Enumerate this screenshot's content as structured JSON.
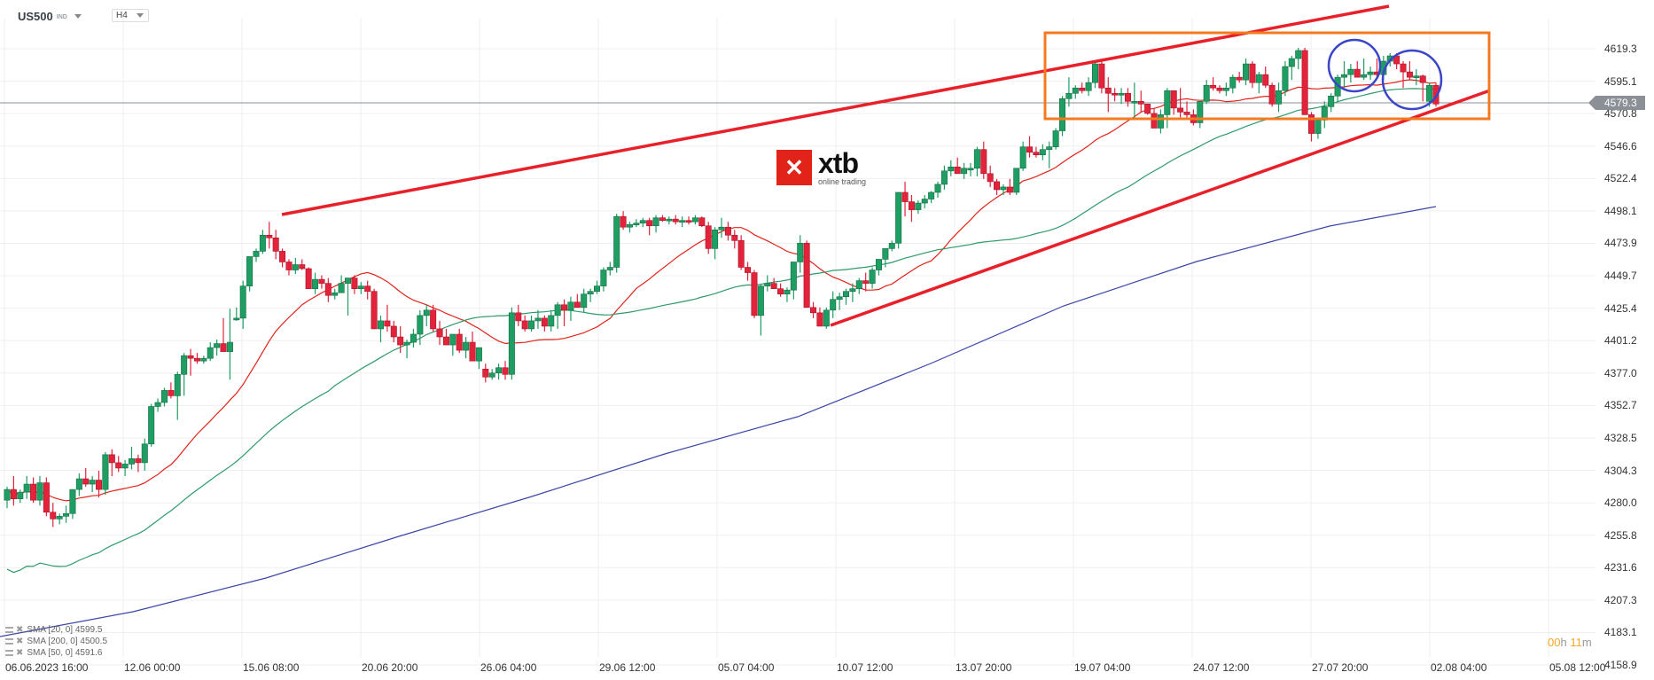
{
  "header": {
    "symbol": "US500",
    "symbol_tag": "IND",
    "timeframe": "H4"
  },
  "logo": {
    "mark": "✕",
    "name": "xtb",
    "tagline": "online trading"
  },
  "indicators": [
    {
      "label": "SMA [20, 0] 4599.5",
      "color": "#e2231a"
    },
    {
      "label": "SMA [200, 0] 4500.5",
      "color": "#3a46a8"
    },
    {
      "label": "SMA [50, 0] 4591.6",
      "color": "#2e9a6a"
    }
  ],
  "timer": {
    "hours": "00",
    "h": "h",
    "minutes": "11",
    "m": "m"
  },
  "current_price": "4579.3",
  "colors": {
    "up": "#1e9e62",
    "down": "#e2233a",
    "channel": "#e8202a",
    "box": "#f47a20",
    "circle": "#3b45c8",
    "sma20": "#e2231a",
    "sma50": "#2e9a6a",
    "sma200": "#3a46a8",
    "grid": "#efefef",
    "price_line": "#8a9096"
  },
  "chart_data": {
    "type": "candlestick",
    "title": "US500 H4",
    "xlabel": "",
    "ylabel": "",
    "ylim": [
      4158.9,
      4619.3
    ],
    "y_ticks": [
      "4619.3",
      "4595.1",
      "4570.8",
      "4546.6",
      "4522.4",
      "4498.1",
      "4473.9",
      "4449.7",
      "4425.4",
      "4401.2",
      "4377.0",
      "4352.7",
      "4328.5",
      "4304.3",
      "4280.0",
      "4255.8",
      "4231.6",
      "4207.3",
      "4183.1",
      "4158.9"
    ],
    "x_ticks": [
      "06.06.2023  16:00",
      "12.06  00:00",
      "15.06  08:00",
      "20.06  20:00",
      "26.06  04:00",
      "29.06  12:00",
      "05.07  04:00",
      "10.07  12:00",
      "13.07  20:00",
      "19.07  04:00",
      "24.07  12:00",
      "27.07  20:00",
      "02.08  04:00",
      "05.08  12:00"
    ],
    "grid": true,
    "last_price": 4579.3,
    "ohlc": [
      [
        4282,
        4292,
        4276,
        4290
      ],
      [
        4290,
        4300,
        4278,
        4283
      ],
      [
        4283,
        4290,
        4280,
        4288
      ],
      [
        4288,
        4300,
        4283,
        4294
      ],
      [
        4294,
        4299,
        4280,
        4282
      ],
      [
        4282,
        4300,
        4278,
        4295
      ],
      [
        4295,
        4299,
        4270,
        4273
      ],
      [
        4273,
        4280,
        4262,
        4268
      ],
      [
        4268,
        4272,
        4264,
        4270
      ],
      [
        4270,
        4278,
        4265,
        4272
      ],
      [
        4272,
        4282,
        4268,
        4290
      ],
      [
        4290,
        4302,
        4285,
        4298
      ],
      [
        4298,
        4306,
        4292,
        4294
      ],
      [
        4294,
        4300,
        4288,
        4297
      ],
      [
        4297,
        4304,
        4284,
        4290
      ],
      [
        4290,
        4318,
        4286,
        4316
      ],
      [
        4316,
        4320,
        4300,
        4310
      ],
      [
        4310,
        4315,
        4303,
        4306
      ],
      [
        4306,
        4312,
        4300,
        4309
      ],
      [
        4309,
        4322,
        4305,
        4313
      ],
      [
        4313,
        4316,
        4303,
        4310
      ],
      [
        4310,
        4328,
        4304,
        4324
      ],
      [
        4324,
        4354,
        4322,
        4352
      ],
      [
        4352,
        4358,
        4348,
        4355
      ],
      [
        4355,
        4366,
        4352,
        4364
      ],
      [
        4364,
        4370,
        4358,
        4360
      ],
      [
        4360,
        4378,
        4342,
        4376
      ],
      [
        4376,
        4392,
        4360,
        4390
      ],
      [
        4390,
        4395,
        4375,
        4388
      ],
      [
        4388,
        4392,
        4384,
        4386
      ],
      [
        4386,
        4390,
        4384,
        4388
      ],
      [
        4388,
        4400,
        4386,
        4396
      ],
      [
        4396,
        4402,
        4390,
        4399
      ],
      [
        4399,
        4418,
        4394,
        4393
      ],
      [
        4393,
        4425,
        4372,
        4400
      ],
      [
        4418,
        4426,
        4416,
        4418
      ],
      [
        4418,
        4446,
        4410,
        4442
      ],
      [
        4442,
        4460,
        4438,
        4464
      ],
      [
        4464,
        4470,
        4460,
        4468
      ],
      [
        4468,
        4484,
        4466,
        4480
      ],
      [
        4480,
        4490,
        4470,
        4478
      ],
      [
        4478,
        4484,
        4462,
        4468
      ],
      [
        4468,
        4470,
        4456,
        4460
      ],
      [
        4460,
        4462,
        4450,
        4454
      ],
      [
        4454,
        4463,
        4451,
        4458
      ],
      [
        4458,
        4462,
        4454,
        4455
      ],
      [
        4455,
        4456,
        4440,
        4440
      ],
      [
        4440,
        4452,
        4436,
        4447
      ],
      [
        4447,
        4450,
        4440,
        4444
      ],
      [
        4444,
        4448,
        4430,
        4435
      ],
      [
        4435,
        4440,
        4432,
        4437
      ],
      [
        4437,
        4450,
        4438,
        4444
      ],
      [
        4444,
        4448,
        4420,
        4448
      ],
      [
        4448,
        4450,
        4436,
        4440
      ],
      [
        4440,
        4445,
        4436,
        4442
      ],
      [
        4442,
        4446,
        4432,
        4438
      ],
      [
        4438,
        4440,
        4410,
        4410
      ],
      [
        4410,
        4420,
        4400,
        4416
      ],
      [
        4416,
        4428,
        4408,
        4412
      ],
      [
        4412,
        4416,
        4400,
        4404
      ],
      [
        4404,
        4412,
        4392,
        4398
      ],
      [
        4398,
        4402,
        4388,
        4400
      ],
      [
        4400,
        4410,
        4396,
        4406
      ],
      [
        4406,
        4424,
        4398,
        4420
      ],
      [
        4420,
        4428,
        4412,
        4424
      ],
      [
        4424,
        4428,
        4408,
        4410
      ],
      [
        4410,
        4416,
        4398,
        4404
      ],
      [
        4404,
        4410,
        4398,
        4398
      ],
      [
        4398,
        4406,
        4390,
        4406
      ],
      [
        4406,
        4410,
        4392,
        4394
      ],
      [
        4394,
        4404,
        4388,
        4400
      ],
      [
        4400,
        4408,
        4392,
        4386
      ],
      [
        4386,
        4392,
        4380,
        4396
      ],
      [
        4380,
        4384,
        4370,
        4374
      ],
      [
        4374,
        4380,
        4372,
        4377
      ],
      [
        4377,
        4384,
        4372,
        4381
      ],
      [
        4381,
        4386,
        4372,
        4376
      ],
      [
        4376,
        4426,
        4372,
        4422
      ],
      [
        4422,
        4428,
        4412,
        4416
      ],
      [
        4416,
        4420,
        4408,
        4410
      ],
      [
        4410,
        4420,
        4408,
        4416
      ],
      [
        4416,
        4424,
        4410,
        4418
      ],
      [
        4418,
        4420,
        4408,
        4412
      ],
      [
        4412,
        4424,
        4408,
        4420
      ],
      [
        4420,
        4430,
        4410,
        4428
      ],
      [
        4428,
        4432,
        4412,
        4424
      ],
      [
        4424,
        4434,
        4416,
        4430
      ],
      [
        4430,
        4436,
        4426,
        4426
      ],
      [
        4426,
        4440,
        4422,
        4436
      ],
      [
        4436,
        4440,
        4430,
        4438
      ],
      [
        4438,
        4446,
        4436,
        4442
      ],
      [
        4442,
        4456,
        4438,
        4454
      ],
      [
        4454,
        4460,
        4450,
        4456
      ],
      [
        4456,
        4496,
        4452,
        4494
      ],
      [
        4494,
        4498,
        4484,
        4486
      ],
      [
        4486,
        4490,
        4482,
        4488
      ],
      [
        4488,
        4492,
        4486,
        4489
      ],
      [
        4489,
        4493,
        4486,
        4491
      ],
      [
        4491,
        4493,
        4480,
        4487
      ],
      [
        4487,
        4495,
        4482,
        4493
      ],
      [
        4493,
        4495,
        4490,
        4491
      ],
      [
        4491,
        4494,
        4488,
        4492
      ],
      [
        4492,
        4495,
        4488,
        4490
      ],
      [
        4490,
        4494,
        4486,
        4491
      ],
      [
        4491,
        4494,
        4488,
        4490
      ],
      [
        4490,
        4495,
        4488,
        4493
      ],
      [
        4493,
        4494,
        4486,
        4487
      ],
      [
        4487,
        4490,
        4466,
        4470
      ],
      [
        4470,
        4486,
        4462,
        4484
      ],
      [
        4484,
        4493,
        4478,
        4486
      ],
      [
        4486,
        4490,
        4476,
        4480
      ],
      [
        4480,
        4484,
        4470,
        4476
      ],
      [
        4476,
        4480,
        4454,
        4456
      ],
      [
        4456,
        4460,
        4446,
        4452
      ],
      [
        4452,
        4454,
        4418,
        4420
      ],
      [
        4420,
        4443,
        4405,
        4442
      ],
      [
        4442,
        4450,
        4438,
        4444
      ],
      [
        4444,
        4448,
        4440,
        4440
      ],
      [
        4440,
        4444,
        4434,
        4436
      ],
      [
        4436,
        4441,
        4430,
        4439
      ],
      [
        4439,
        4452,
        4432,
        4460
      ],
      [
        4460,
        4480,
        4452,
        4474
      ],
      [
        4474,
        4476,
        4426,
        4426
      ],
      [
        4426,
        4430,
        4418,
        4422
      ],
      [
        4422,
        4426,
        4412,
        4412
      ],
      [
        4412,
        4426,
        4410,
        4424
      ],
      [
        4424,
        4438,
        4418,
        4432
      ],
      [
        4432,
        4437,
        4424,
        4434
      ],
      [
        4434,
        4440,
        4428,
        4438
      ],
      [
        4438,
        4444,
        4430,
        4440
      ],
      [
        4440,
        4448,
        4436,
        4446
      ],
      [
        4446,
        4452,
        4438,
        4444
      ],
      [
        4444,
        4456,
        4440,
        4454
      ],
      [
        4454,
        4460,
        4450,
        4462
      ],
      [
        4462,
        4468,
        4456,
        4470
      ],
      [
        4470,
        4476,
        4468,
        4474
      ],
      [
        4474,
        4512,
        4470,
        4512
      ],
      [
        4512,
        4520,
        4494,
        4505
      ],
      [
        4505,
        4510,
        4490,
        4499
      ],
      [
        4499,
        4506,
        4496,
        4504
      ],
      [
        4504,
        4510,
        4500,
        4507
      ],
      [
        4507,
        4513,
        4504,
        4512
      ],
      [
        4512,
        4520,
        4508,
        4518
      ],
      [
        4518,
        4532,
        4514,
        4528
      ],
      [
        4528,
        4536,
        4524,
        4531
      ],
      [
        4531,
        4538,
        4526,
        4526
      ],
      [
        4526,
        4534,
        4522,
        4530
      ],
      [
        4530,
        4534,
        4524,
        4530
      ],
      [
        4530,
        4546,
        4524,
        4544
      ],
      [
        4544,
        4550,
        4522,
        4526
      ],
      [
        4526,
        4532,
        4516,
        4520
      ],
      [
        4520,
        4522,
        4510,
        4514
      ],
      [
        4514,
        4518,
        4510,
        4516
      ],
      [
        4516,
        4522,
        4510,
        4512
      ],
      [
        4512,
        4530,
        4510,
        4530
      ],
      [
        4530,
        4550,
        4528,
        4546
      ],
      [
        4546,
        4554,
        4538,
        4542
      ],
      [
        4542,
        4546,
        4538,
        4540
      ],
      [
        4540,
        4548,
        4536,
        4544
      ],
      [
        4544,
        4550,
        4530,
        4546
      ],
      [
        4546,
        4560,
        4544,
        4558
      ],
      [
        4558,
        4584,
        4554,
        4582
      ],
      [
        4582,
        4598,
        4576,
        4586
      ],
      [
        4586,
        4592,
        4582,
        4590
      ],
      [
        4590,
        4594,
        4586,
        4588
      ],
      [
        4588,
        4598,
        4584,
        4594
      ],
      [
        4594,
        4610,
        4590,
        4608
      ],
      [
        4608,
        4610,
        4586,
        4590
      ],
      [
        4590,
        4598,
        4572,
        4586
      ],
      [
        4586,
        4590,
        4580,
        4585
      ],
      [
        4585,
        4590,
        4578,
        4586
      ],
      [
        4586,
        4590,
        4576,
        4580
      ],
      [
        4580,
        4594,
        4566,
        4580
      ],
      [
        4580,
        4588,
        4572,
        4578
      ],
      [
        4578,
        4576,
        4570,
        4571
      ],
      [
        4571,
        4575,
        4560,
        4560
      ],
      [
        4560,
        4574,
        4556,
        4570
      ],
      [
        4570,
        4590,
        4560,
        4588
      ],
      [
        4588,
        4584,
        4570,
        4575
      ],
      [
        4575,
        4590,
        4568,
        4572
      ],
      [
        4572,
        4580,
        4566,
        4570
      ],
      [
        4570,
        4574,
        4562,
        4564
      ],
      [
        4564,
        4580,
        4560,
        4580
      ],
      [
        4580,
        4596,
        4578,
        4592
      ],
      [
        4592,
        4598,
        4588,
        4590
      ],
      [
        4590,
        4592,
        4586,
        4588
      ],
      [
        4588,
        4594,
        4584,
        4590
      ],
      [
        4590,
        4600,
        4586,
        4598
      ],
      [
        4598,
        4602,
        4594,
        4596
      ],
      [
        4596,
        4612,
        4592,
        4608
      ],
      [
        4608,
        4610,
        4590,
        4594
      ],
      [
        4594,
        4602,
        4586,
        4600
      ],
      [
        4600,
        4606,
        4590,
        4592
      ],
      [
        4592,
        4594,
        4576,
        4578
      ],
      [
        4578,
        4594,
        4572,
        4588
      ],
      [
        4588,
        4610,
        4584,
        4606
      ],
      [
        4606,
        4614,
        4596,
        4612
      ],
      [
        4612,
        4620,
        4604,
        4618
      ],
      [
        4618,
        4620,
        4570,
        4570
      ],
      [
        4570,
        4572,
        4550,
        4556
      ],
      [
        4556,
        4568,
        4552,
        4566
      ],
      [
        4566,
        4580,
        4560,
        4576
      ],
      [
        4576,
        4586,
        4572,
        4584
      ],
      [
        4584,
        4600,
        4580,
        4598
      ],
      [
        4598,
        4610,
        4590,
        4600
      ],
      [
        4600,
        4608,
        4594,
        4604
      ],
      [
        4604,
        4610,
        4600,
        4598
      ],
      [
        4598,
        4612,
        4596,
        4600
      ],
      [
        4600,
        4606,
        4596,
        4602
      ],
      [
        4602,
        4612,
        4598,
        4600
      ],
      [
        4600,
        4614,
        4596,
        4610
      ],
      [
        4610,
        4616,
        4606,
        4614
      ],
      [
        4614,
        4616,
        4604,
        4608
      ],
      [
        4608,
        4610,
        4590,
        4602
      ],
      [
        4602,
        4610,
        4596,
        4598
      ],
      [
        4598,
        4604,
        4592,
        4599
      ],
      [
        4599,
        4600,
        4580,
        4594
      ],
      [
        4580,
        4594,
        4576,
        4592
      ],
      [
        4592,
        4594,
        4576,
        4578
      ]
    ],
    "series": [
      {
        "name": "SMA [20, 0]",
        "last": 4599.5
      },
      {
        "name": "SMA [200, 0]",
        "last": 4500.5
      },
      {
        "name": "SMA [50, 0]",
        "last": 4591.6
      }
    ],
    "annotations": [
      {
        "type": "trendline",
        "desc": "upper rising channel line",
        "color": "#e8202a"
      },
      {
        "type": "trendline",
        "desc": "lower rising channel line",
        "color": "#e8202a"
      },
      {
        "type": "rectangle",
        "desc": "consolidation range box",
        "color": "#f47a20"
      },
      {
        "type": "circle",
        "desc": "two highlighted ranges (double top)",
        "color": "#3b45c8",
        "count": 2
      }
    ]
  }
}
